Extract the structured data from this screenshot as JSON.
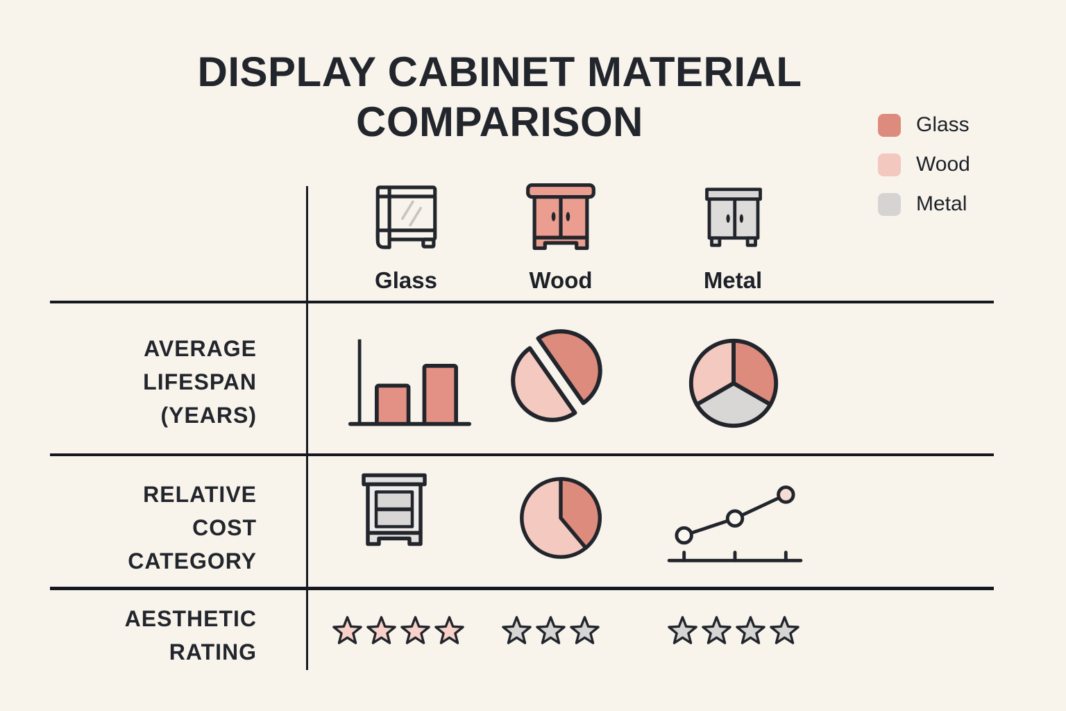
{
  "title": "DISPLAY CABINET MATERIAL COMPARISON",
  "title_lines": [
    "DISPLAY CABINET MATERIAL",
    "COMPARISON"
  ],
  "colors": {
    "glass": "#dd8b7d",
    "wood": "#f3c8bf",
    "metal": "#d6d4d2",
    "star_pink": "#f8d2c8",
    "star_gray": "#d7d5d3",
    "ink": "#22262c",
    "background": "#f8f4ec"
  },
  "legend": {
    "position": "top-right",
    "items": [
      {
        "label": "Glass",
        "color": "#dd8b7d",
        "icon": "glass-swatch"
      },
      {
        "label": "Wood",
        "color": "#f3c8bf",
        "icon": "wood-swatch"
      },
      {
        "label": "Metal",
        "color": "#d6d4d2",
        "icon": "metal-swatch"
      }
    ]
  },
  "columns": [
    {
      "label": "Glass",
      "icon": "glass-cabinet-icon"
    },
    {
      "label": "Wood",
      "icon": "wood-cabinet-icon"
    },
    {
      "label": "Metal",
      "icon": "metal-cabinet-icon"
    }
  ],
  "rows": [
    {
      "label": "AVERAGE LIFESPAN (YEARS)",
      "label_lines": [
        "AVERAGE",
        "LIFESPAN",
        "(YEARS)"
      ],
      "cells": [
        {
          "icon": "bar-chart-icon"
        },
        {
          "icon": "exploded-pie-icon"
        },
        {
          "icon": "three-slice-pie-icon"
        }
      ]
    },
    {
      "label": "RELATIVE COST CATEGORY",
      "label_lines": [
        "RELATIVE",
        "COST",
        "CATEGORY"
      ],
      "cells": [
        {
          "icon": "cabinet-icon"
        },
        {
          "icon": "pie-wedge-icon"
        },
        {
          "icon": "rising-line-chart-icon"
        }
      ]
    },
    {
      "label": "AESTHETIC RATING",
      "label_lines": [
        "AESTHETIC",
        "RATING"
      ],
      "cells": [
        {
          "icon": "star-rating",
          "stars": 4,
          "star_color": "star_pink"
        },
        {
          "icon": "star-rating",
          "stars": 3,
          "star_color": "star_gray"
        },
        {
          "icon": "star-rating",
          "stars": 4,
          "star_color": "star_gray"
        }
      ]
    }
  ],
  "chart_data": {
    "type": "table",
    "title": "DISPLAY CABINET MATERIAL COMPARISON",
    "columns": [
      "Glass",
      "Wood",
      "Metal"
    ],
    "rows": [
      {
        "label": "AVERAGE LIFESPAN (YEARS)",
        "cells": [
          "bar-chart pictogram: two salmon bars rising left to right",
          "exploded two-slice pie pictogram: dark salmon half upper-right, light pink half lower-left",
          "three equal-slice pie pictogram: salmon right, light pink upper-left, gray bottom"
        ]
      },
      {
        "label": "RELATIVE COST CATEGORY",
        "cells": [
          "gray nightstand cabinet pictogram",
          "pie pictogram: dark salmon slice ~140 degrees from 12 o'clock clockwise, rest light pink",
          "rising line chart pictogram: 3 open points ascending, axis with 3 ticks"
        ]
      },
      {
        "label": "AESTHETIC RATING",
        "cells": [
          4,
          3,
          4
        ]
      }
    ],
    "legend": [
      "Glass",
      "Wood",
      "Metal"
    ],
    "legend_position": "top-right",
    "star_ratings": {
      "Glass": 4,
      "Wood": 3,
      "Metal": 4
    }
  }
}
